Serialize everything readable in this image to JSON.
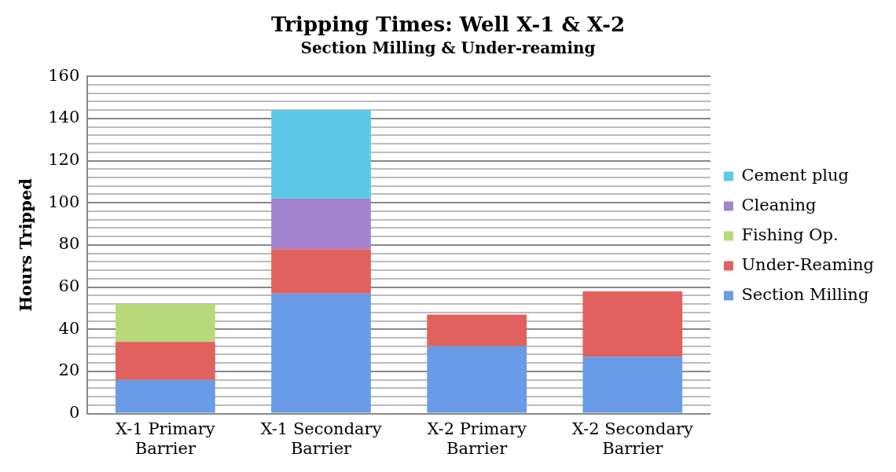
{
  "chart_data": {
    "type": "bar",
    "title": "Tripping Times: Well X-1 & X-2",
    "subtitle": "Section Milling & Under-reaming",
    "ylabel": "Hours Tripped",
    "categories": [
      "X-1 Primary Barrier",
      "X-1 Secondary Barrier",
      "X-2 Primary Barrier",
      "X-2 Secondary Barrier"
    ],
    "stacked": true,
    "legend": "right",
    "grid": "y",
    "ylim": [
      0,
      160
    ],
    "yticks": [
      0,
      {
        "value": 4,
        "label": null
      },
      {
        "value": 8,
        "label": null
      },
      {
        "value": 12,
        "label": null
      },
      {
        "value": 16,
        "label": null
      },
      20,
      {
        "value": 24,
        "label": null
      },
      {
        "value": 28,
        "label": null
      },
      {
        "value": 32,
        "label": null
      },
      {
        "value": 36,
        "label": null
      },
      40,
      {
        "value": 44,
        "label": null
      },
      {
        "value": 48,
        "label": null
      },
      {
        "value": 52,
        "label": null
      },
      {
        "value": 56,
        "label": null
      },
      60,
      {
        "value": 64,
        "label": null
      },
      {
        "value": 68,
        "label": null
      },
      {
        "value": 72,
        "label": null
      },
      {
        "value": 76,
        "label": null
      },
      80,
      {
        "value": 84,
        "label": null
      },
      {
        "value": 88,
        "label": null
      },
      {
        "value": 92,
        "label": null
      },
      {
        "value": 96,
        "label": null
      },
      100,
      {
        "value": 104,
        "label": null
      },
      {
        "value": 108,
        "label": null
      },
      {
        "value": 112,
        "label": null
      },
      {
        "value": 116,
        "label": null
      },
      120,
      {
        "value": 124,
        "label": null
      },
      {
        "value": 128,
        "label": null
      },
      {
        "value": 132,
        "label": null
      },
      {
        "value": 136,
        "label": null
      },
      140,
      {
        "value": 144,
        "label": null
      },
      {
        "value": 148,
        "label": null
      },
      {
        "value": 152,
        "label": null
      },
      {
        "value": 156,
        "label": null
      },
      160
    ],
    "series": [
      {
        "name": "Section Milling",
        "color": "#6a9be6",
        "values": [
          16,
          57,
          32,
          27
        ]
      },
      {
        "name": "Under-Reaming",
        "color": "#e0615d",
        "values": [
          18,
          21,
          15,
          31
        ]
      },
      {
        "name": "Fishing Op.",
        "color": "#b8d97a",
        "values": [
          18,
          null,
          null,
          null
        ]
      },
      {
        "name": "Cleaning",
        "color": "#a283cc",
        "values": [
          null,
          24,
          null,
          null
        ]
      },
      {
        "name": "Cement plug",
        "color": "#5cc9e6",
        "values": [
          null,
          42,
          null,
          null
        ]
      }
    ]
  }
}
